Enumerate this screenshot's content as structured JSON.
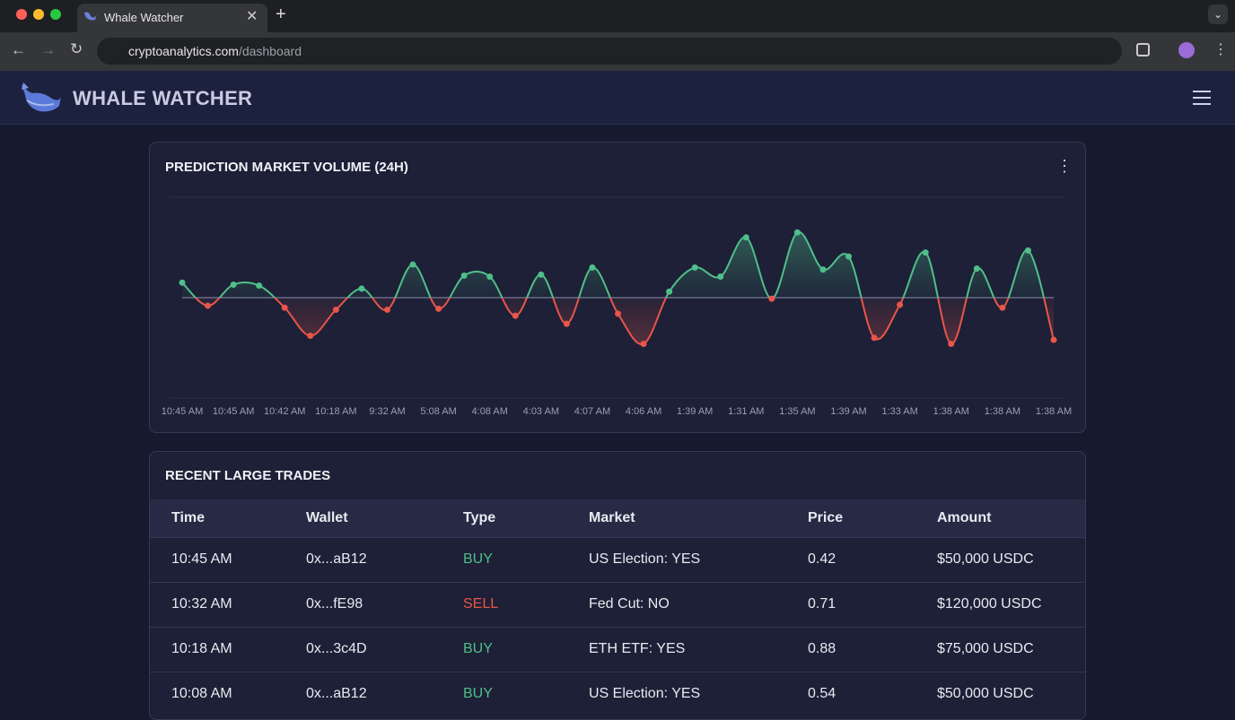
{
  "browser": {
    "tab_title": "Whale Watcher",
    "url_host": "cryptoanalytics.com",
    "url_path": "/dashboard"
  },
  "app": {
    "brand": "WHALE WATCHER"
  },
  "chart_data": {
    "type": "line",
    "title": "PREDICTION MARKET VOLUME (24H)",
    "categories": [
      "10:45 AM",
      null,
      "10:45 AM",
      null,
      "10:42 AM",
      null,
      "10:18 AM",
      null,
      "9:32 AM",
      null,
      "5:08 AM",
      null,
      "4:08 AM",
      null,
      "4:03 AM",
      null,
      "4:07 AM",
      null,
      "4:06 AM",
      null,
      "1:39 AM",
      null,
      "1:31 AM",
      null,
      "1:35 AM",
      null,
      "1:39 AM",
      null,
      "1:33 AM",
      null,
      "1:38 AM",
      null,
      "1:38 AM",
      null,
      "1:38 AM"
    ],
    "values": [
      15,
      -8,
      13,
      12,
      -10,
      -38,
      -12,
      9,
      -12,
      33,
      -11,
      22,
      21,
      -18,
      23,
      -26,
      30,
      -16,
      -46,
      6,
      30,
      21,
      60,
      -1,
      65,
      28,
      41,
      -40,
      -7,
      45,
      -46,
      29,
      -10,
      47,
      -42
    ],
    "color": "#4fbf8a",
    "negative_color": "#e8554a",
    "ylim": [
      -100,
      100
    ]
  },
  "table": {
    "title": "RECENT LARGE TRADES",
    "columns": [
      "Time",
      "Wallet",
      "Type",
      "Market",
      "Price",
      "Amount"
    ],
    "type_colors": {
      "BUY": "#4fbf8a",
      "SELL": "#e8554a"
    },
    "rows": [
      [
        "10:45 AM",
        "0x...aB12",
        "BUY",
        "US Election: YES",
        "0.42",
        "$50,000 USDC"
      ],
      [
        "10:32 AM",
        "0x...fE98",
        "SELL",
        "Fed Cut: NO",
        "0.71",
        "$120,000 USDC"
      ],
      [
        "10:18 AM",
        "0x...3c4D",
        "BUY",
        "ETH ETF: YES",
        "0.88",
        "$75,000 USDC"
      ],
      [
        "10:08 AM",
        "0x...aB12",
        "BUY",
        "US Election: YES",
        "0.54",
        "$50,000 USDC"
      ]
    ]
  }
}
